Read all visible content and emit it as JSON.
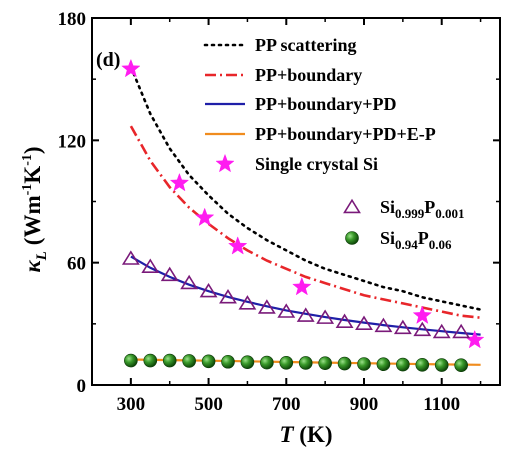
{
  "chart_data": {
    "type": "line",
    "panel_label": "(d)",
    "x_axis": {
      "title_symbol": "T",
      "title_unit": " (K)",
      "lim": [
        200,
        1250
      ],
      "ticks": [
        300,
        500,
        700,
        900,
        1100
      ],
      "tick_labels": [
        "300",
        "500",
        "700",
        "900",
        "1100"
      ]
    },
    "y_axis": {
      "title_symbol": "κ",
      "title_symbol_sub": "L",
      "title_unit": "(Wm",
      "title_unit_sup1": "-1",
      "title_unit_mid": "K",
      "title_unit_sup2": "-1",
      "title_unit_end": ")",
      "lim": [
        0,
        180
      ],
      "ticks": [
        0,
        60,
        120,
        180
      ],
      "tick_labels": [
        "0",
        "60",
        "120",
        "180"
      ]
    },
    "curves": [
      {
        "name": "PP scattering",
        "style": "dotted",
        "color": "#000000",
        "x": [
          300,
          350,
          400,
          450,
          500,
          550,
          600,
          650,
          700,
          750,
          800,
          850,
          900,
          950,
          1000,
          1050,
          1100,
          1150,
          1200
        ],
        "y": [
          156,
          133,
          116,
          103,
          93,
          84,
          77,
          71,
          66,
          61,
          57,
          54,
          51,
          48,
          46,
          43,
          41,
          39,
          37
        ]
      },
      {
        "name": "PP+boundary",
        "style": "dashdot",
        "color": "#e8262a",
        "x": [
          300,
          350,
          400,
          450,
          500,
          550,
          600,
          650,
          700,
          750,
          800,
          850,
          900,
          950,
          1000,
          1050,
          1100,
          1150,
          1200
        ],
        "y": [
          127,
          110,
          97,
          87,
          79,
          72,
          66,
          61,
          57,
          53,
          50,
          47,
          44,
          42,
          40,
          38,
          36,
          34,
          33
        ]
      },
      {
        "name": "PP+boundary+PD",
        "style": "solid",
        "color": "#1f1fa8",
        "x": [
          300,
          350,
          400,
          450,
          500,
          550,
          600,
          650,
          700,
          750,
          800,
          850,
          900,
          950,
          1000,
          1050,
          1100,
          1150,
          1200
        ],
        "y": [
          63,
          57.5,
          53,
          49.2,
          46,
          43.2,
          40.8,
          38.6,
          36.6,
          34.9,
          33.3,
          31.9,
          30.6,
          29.4,
          28.3,
          27.3,
          26.4,
          25.5,
          24.7
        ]
      },
      {
        "name": "PP+boundary+PD+E-P",
        "style": "solid",
        "color": "#f08c1e",
        "x": [
          300,
          400,
          500,
          600,
          700,
          800,
          900,
          1000,
          1100,
          1200
        ],
        "y": [
          12.5,
          12.2,
          11.9,
          11.6,
          11.3,
          11.0,
          10.7,
          10.4,
          10.1,
          9.9
        ]
      }
    ],
    "markers": [
      {
        "name": "Single crystal Si",
        "shape": "star",
        "color": "#ff1cf0",
        "x": [
          300,
          425,
          490,
          575,
          740,
          1050,
          1185
        ],
        "y": [
          155,
          99,
          82,
          68,
          48,
          34,
          22
        ]
      },
      {
        "name_base": "Si",
        "name_sub1": "0.999",
        "name_mid": "P",
        "name_sub2": "0.001",
        "shape": "triangle-open",
        "color": "#7a1a7a",
        "x": [
          300,
          350,
          400,
          450,
          500,
          550,
          600,
          650,
          700,
          750,
          800,
          850,
          900,
          950,
          1000,
          1050,
          1100,
          1150
        ],
        "y": [
          62,
          58,
          54,
          50,
          46,
          43,
          40,
          38,
          36,
          34,
          33,
          31,
          30,
          29,
          28,
          27,
          26,
          26
        ]
      },
      {
        "name_base": "Si",
        "name_sub1": "0.94",
        "name_mid": "P",
        "name_sub2": "0.06",
        "shape": "sphere",
        "color": "#2e8a1f",
        "x": [
          300,
          350,
          400,
          450,
          500,
          550,
          600,
          650,
          700,
          750,
          800,
          850,
          900,
          950,
          1000,
          1050,
          1100,
          1150
        ],
        "y": [
          12,
          12,
          12,
          11.8,
          11.6,
          11.4,
          11.2,
          11,
          10.9,
          10.8,
          10.7,
          10.5,
          10.3,
          10.2,
          10,
          9.9,
          9.8,
          9.7
        ]
      }
    ]
  }
}
